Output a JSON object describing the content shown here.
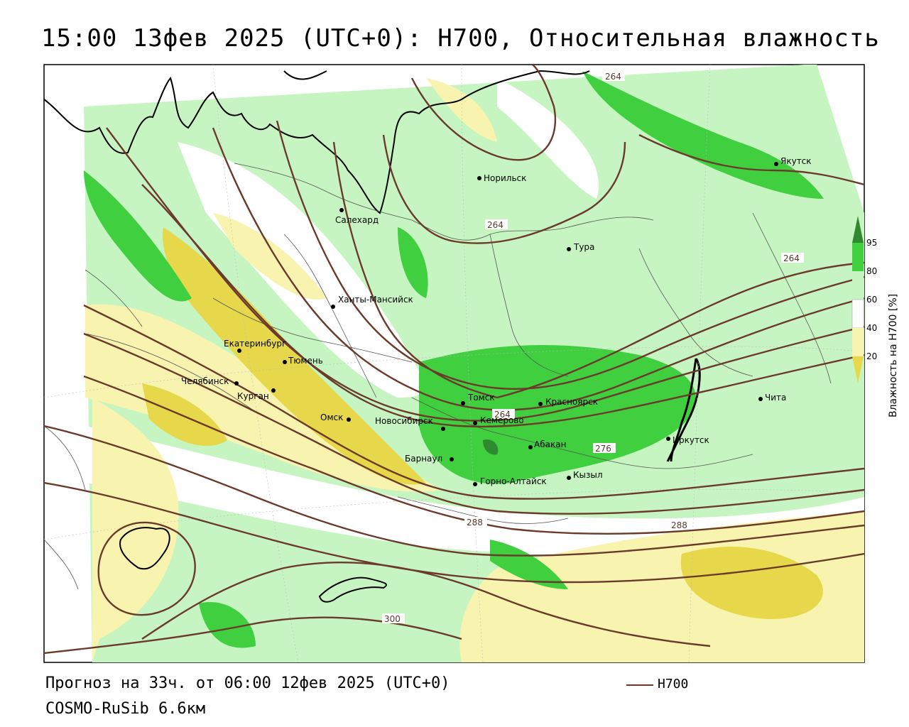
{
  "title": "15:00 13фев 2025 (UTC+0): H700, Относительная влажность",
  "footer": {
    "forecast": "Прогноз на 33ч. от 06:00 12фев 2025 (UTC+0)",
    "model": "COSMO-RuSib 6.6км"
  },
  "legend": {
    "line_label": "H700",
    "line_color": "#6b3a2a"
  },
  "colorbar": {
    "title": "Влажность на H700 [%]",
    "ticks": [
      "95",
      "80",
      "60",
      "40",
      "20"
    ],
    "colors": {
      "g95": "#2f8a2f",
      "g80": "#3fcf3f",
      "g60": "#c6f5c2",
      "white": "#ffffff",
      "y40": "#f8f4b0",
      "y20": "#e6d84a",
      "dark_yellow": "#cbb12a"
    }
  },
  "cities": [
    {
      "name": "Норильск"
    },
    {
      "name": "Якутск"
    },
    {
      "name": "Салехард"
    },
    {
      "name": "Тура"
    },
    {
      "name": "Ханты-Мансийск"
    },
    {
      "name": "Екатеринбург"
    },
    {
      "name": "Тюмень"
    },
    {
      "name": "Челябинск"
    },
    {
      "name": "Курган"
    },
    {
      "name": "Омск"
    },
    {
      "name": "Томск"
    },
    {
      "name": "Красноярск"
    },
    {
      "name": "Новосибирск"
    },
    {
      "name": "Кемерово"
    },
    {
      "name": "Абакан"
    },
    {
      "name": "Барнаул"
    },
    {
      "name": "Кызыл"
    },
    {
      "name": "Горно-Алтайск"
    },
    {
      "name": "Иркутск"
    },
    {
      "name": "Чита"
    }
  ],
  "contour_labels": [
    "264",
    "264",
    "264",
    "264",
    "276",
    "288",
    "288",
    "300"
  ]
}
